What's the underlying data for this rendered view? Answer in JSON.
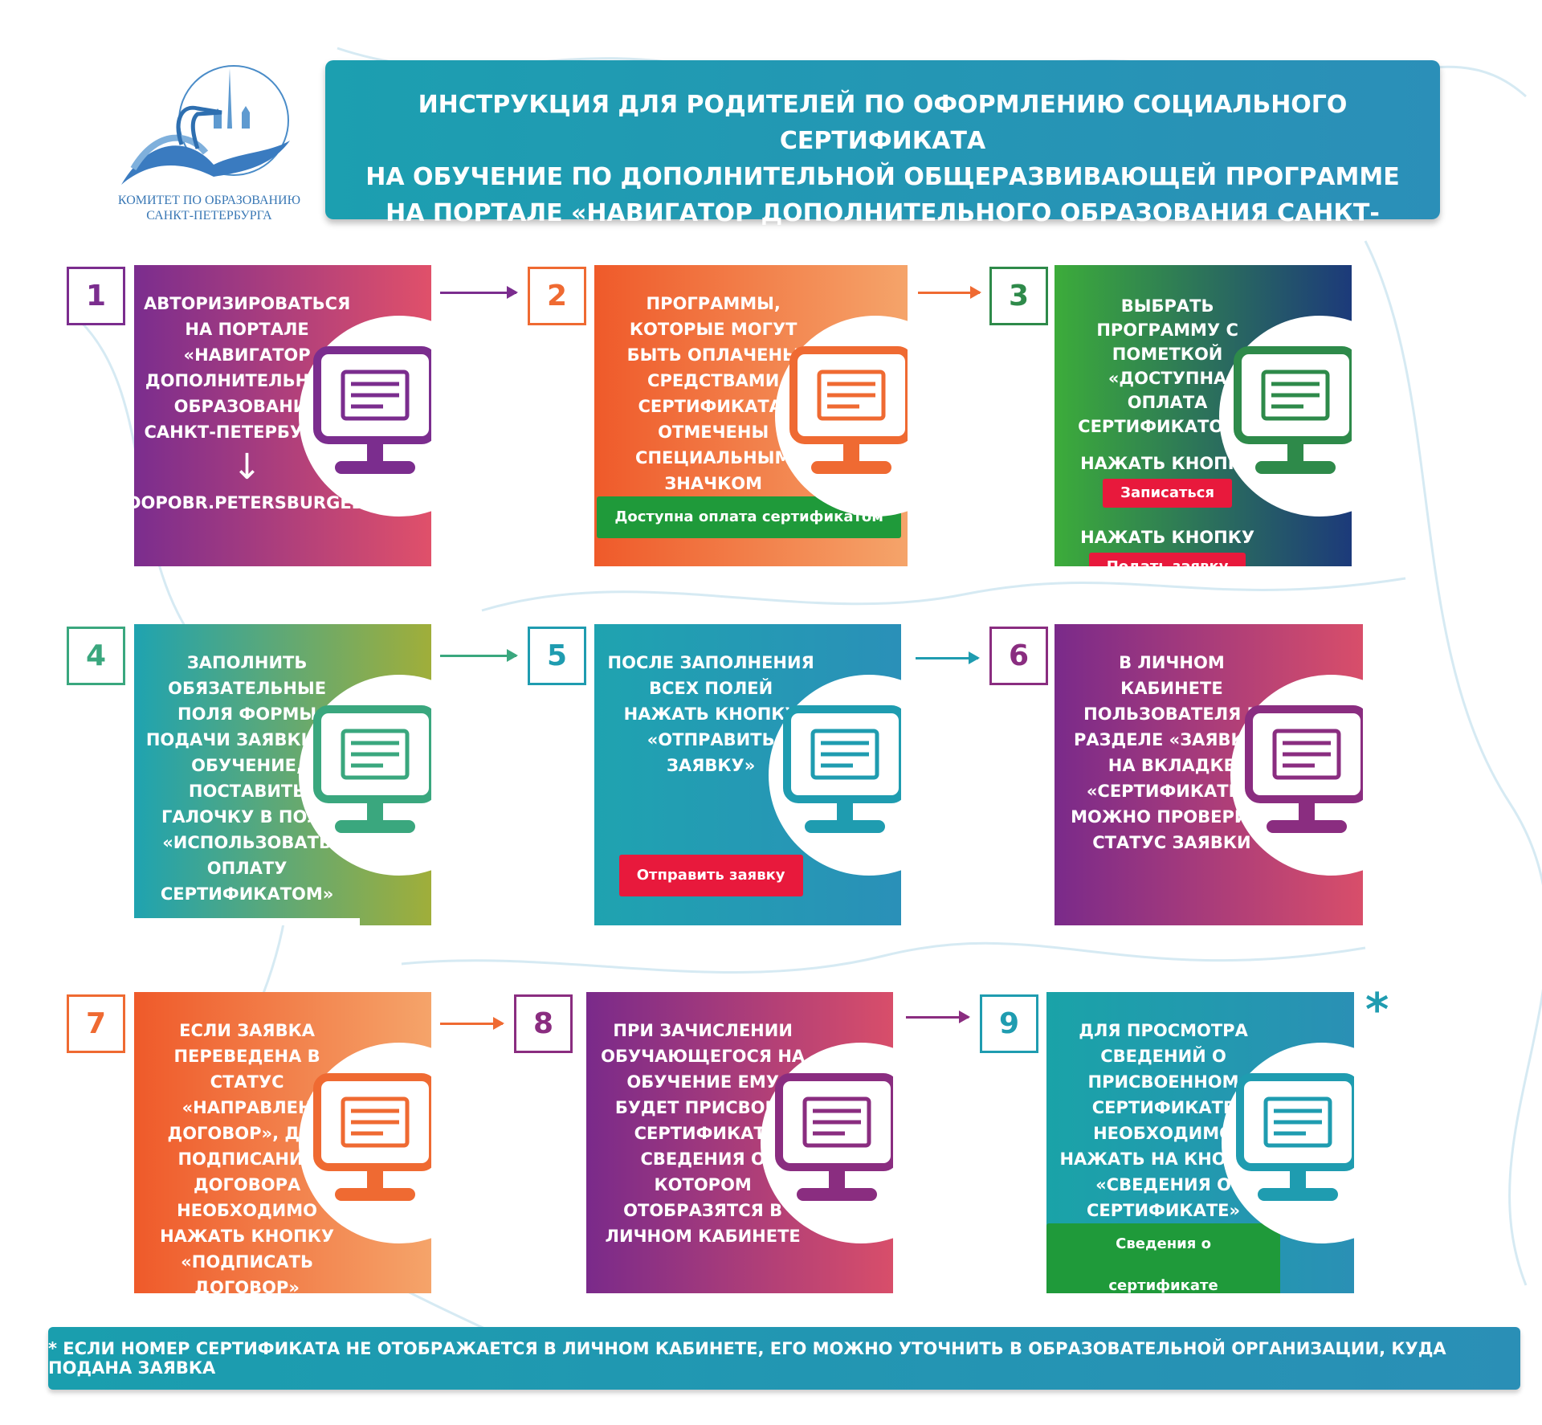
{
  "logo": {
    "line1": "КОМИТЕТ ПО ОБРАЗОВАНИЮ",
    "line2": "САНКТ-ПЕТЕРБУРГА"
  },
  "header": {
    "line1": "ИНСТРУКЦИЯ ДЛЯ РОДИТЕЛЕЙ ПО ОФОРМЛЕНИЮ СОЦИАЛЬНОГО СЕРТИФИКАТА",
    "line2": "НА ОБУЧЕНИЕ ПО ДОПОЛНИТЕЛЬНОЙ ОБЩЕРАЗВИВАЮЩЕЙ ПРОГРАММЕ",
    "line3": "НА ПОРТАЛЕ «НАВИГАТОР ДОПОЛНИТЕЛЬНОГО ОБРАЗОВАНИЯ САНКТ-ПЕТЕРБУРГА»"
  },
  "steps": [
    {
      "n": "1",
      "text": "АВТОРИЗИРОВАТЬСЯ НА ПОРТАЛЕ «НАВИГАТОР ДОПОЛНИТЕЛЬНОГО ОБРАЗОВАНИЯ САНКТ-ПЕТЕРБУРГА»",
      "arrow": "↓",
      "url": "DOPOBR.PETERSBURGEDU.RU",
      "icon": "gear-hand-icon",
      "color": "#7b2d8e"
    },
    {
      "n": "2",
      "text": "ПРОГРАММЫ, КОТОРЫЕ МОГУТ БЫТЬ ОПЛАЧЕНЫ СРЕДСТВАМИ СЕРТИФИКАТА, ОТМЕЧЕНЫ СПЕЦИАЛЬНЫМ ЗНАЧКОМ",
      "button": "Доступна оплата сертификатом",
      "icon": "checklist-icon",
      "color": "#ef6a32"
    },
    {
      "n": "3",
      "text": "ВЫБРАТЬ ПРОГРАММУ С ПОМЕТКОЙ «ДОСТУПНА ОПЛАТА СЕРТИФИКАТОМ »",
      "text2": "НАЖАТЬ КНОПКУ",
      "button": "Записаться",
      "text3": "НАЖАТЬ КНОПКУ",
      "button2": "Подать заявку",
      "icon": "ruble-hand-icon",
      "color": "#2e8a4a"
    },
    {
      "n": "4",
      "text": "ЗАПОЛНИТЬ ОБЯЗАТЕЛЬНЫЕ ПОЛЯ ФОРМЫ ПОДАЧИ ЗАЯВКИ НА ОБУЧЕНИЕ, ПОСТАВИТЬ ГАЛОЧКУ В ПОЛЕ «ИСПОЛЬЗОВАТЬ ОПЛАТУ СЕРТИФИКАТОМ»",
      "checkbox": "Использовать оплату сертификатом",
      "icon": "form-icon",
      "color": "#3aa77e"
    },
    {
      "n": "5",
      "text": "ПОСЛЕ ЗАПОЛНЕНИЯ ВСЕХ ПОЛЕЙ НАЖАТЬ КНОПКУ «ОТПРАВИТЬ ЗАЯВКУ»",
      "button": "Отправить  заявку",
      "icon": "cursor-list-icon",
      "color": "#1f9cb0"
    },
    {
      "n": "6",
      "text": "В ЛИЧНОМ КАБИНЕТЕ ПОЛЬЗОВАТЕЛЯ В РАЗДЕЛЕ «ЗАЯВКИ» НА ВКЛАДКЕ «СЕРТИФИКАТЫ» МОЖНО ПРОВЕРИТЬ СТАТУС ЗАЯВКИ",
      "icon": "user-document-icon",
      "color": "#8a2d80"
    },
    {
      "n": "7",
      "text": "ЕСЛИ ЗАЯВКА ПЕРЕВЕДЕНА В СТАТУС «НАПРАВЛЕН ДОГОВОР», ДЛЯ ПОДПИСАНИЯ ДОГОВОРА НЕОБХОДИМО НАЖАТЬ КНОПКУ «ПОДПИСАТЬ ДОГОВОР»",
      "button": "Подписать договор",
      "icon": "signed-document-icon",
      "color": "#ef6a32"
    },
    {
      "n": "8",
      "text": "ПРИ ЗАЧИСЛЕНИИ ОБУЧАЮЩЕГОСЯ НА ОБУЧЕНИЕ ЕМУ БУДЕТ  ПРИСВОЕН СЕРТИФИКАТ, СВЕДЕНИЯ О КОТОРОМ ОТОБРАЗЯТСЯ В ЛИЧНОМ КАБИНЕТЕ",
      "icon": "certificate-icon",
      "color": "#8a2d80"
    },
    {
      "n": "9",
      "text": "ДЛЯ ПРОСМОТРА СВЕДЕНИЙ О ПРИСВОЕННОМ СЕРТИФИКАТЕ НЕОБХОДИМО НАЖАТЬ НА КНОПКУ «СВЕДЕНИЯ О СЕРТИФИКАТЕ»",
      "button": "Сведения о сертификате",
      "icon": "magnifier-certificate-icon",
      "color": "#1f9cb0"
    }
  ],
  "asterisk": "*",
  "footer": "* ЕСЛИ НОМЕР СЕРТИФИКАТА НЕ ОТОБРАЖАЕТСЯ В ЛИЧНОМ КАБИНЕТЕ, ЕГО МОЖНО УТОЧНИТЬ В ОБРАЗОВАТЕЛЬНОЙ ОРГАНИЗАЦИИ, КУДА ПОДАНА ЗАЯВКА"
}
